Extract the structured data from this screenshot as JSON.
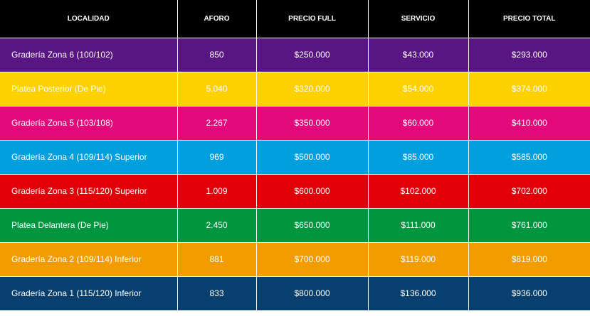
{
  "table": {
    "headers": [
      "LOCALIDAD",
      "AFORO",
      "PRECIO FULL",
      "SERVICIO",
      "PRECIO TOTAL"
    ],
    "rows": [
      {
        "localidad": "Gradería Zona 6 (100/102)",
        "aforo": "850",
        "precio_full": "$250.000",
        "servicio": "$43.000",
        "precio_total": "$293.000",
        "color": "#5a1585"
      },
      {
        "localidad": "Platea Posterior (De Pie)",
        "aforo": "5.040",
        "precio_full": "$320.000",
        "servicio": "$54.000",
        "precio_total": "$374.000",
        "color": "#fdd000"
      },
      {
        "localidad": "Gradería Zona 5 (103/108)",
        "aforo": "2.267",
        "precio_full": "$350.000",
        "servicio": "$60.000",
        "precio_total": "$410.000",
        "color": "#e3097a"
      },
      {
        "localidad": "Gradería Zona 4 (109/114) Superior",
        "aforo": "969",
        "precio_full": "$500.000",
        "servicio": "$85.000",
        "precio_total": "$585.000",
        "color": "#00a0e0"
      },
      {
        "localidad": "Gradería Zona 3 (115/120) Superior",
        "aforo": "1.009",
        "precio_full": "$600.000",
        "servicio": "$102.000",
        "precio_total": "$702.000",
        "color": "#e1000a"
      },
      {
        "localidad": "Platea Delantera (De Pie)",
        "aforo": "2.450",
        "precio_full": "$650.000",
        "servicio": "$111.000",
        "precio_total": "$761.000",
        "color": "#009640"
      },
      {
        "localidad": "Gradería Zona 2 (109/114) Inferior",
        "aforo": "881",
        "precio_full": "$700.000",
        "servicio": "$119.000",
        "precio_total": "$819.000",
        "color": "#f39c00"
      },
      {
        "localidad": "Gradería Zona 1 (115/120) Inferior",
        "aforo": "833",
        "precio_full": "$800.000",
        "servicio": "$136.000",
        "precio_total": "$936.000",
        "color": "#07406f"
      }
    ]
  }
}
